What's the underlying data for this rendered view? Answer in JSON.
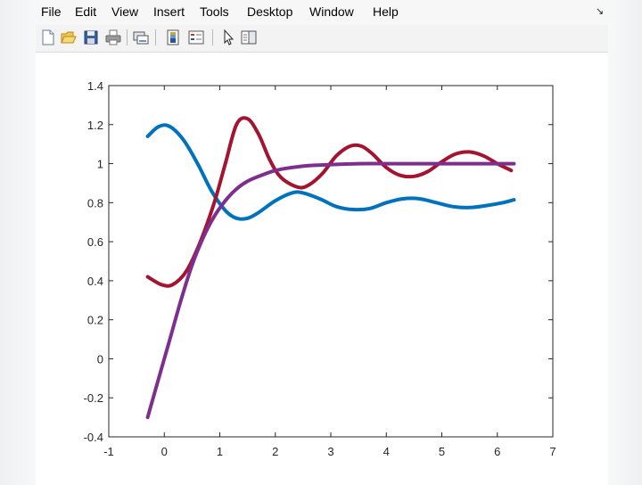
{
  "menu": {
    "items": [
      "File",
      "Edit",
      "View",
      "Insert",
      "Tools",
      "Desktop",
      "Window",
      "Help"
    ]
  },
  "toolbar": {
    "icons": [
      "new-figure-icon",
      "open-file-icon",
      "save-icon",
      "print-icon",
      "link-plot-icon",
      "insert-colorbar-icon",
      "insert-legend-icon",
      "pointer-icon",
      "property-editor-icon"
    ]
  },
  "colors": {
    "blue_series": "#0072BD",
    "red_series": "#A2142F",
    "purple_series": "#7E2F8E"
  },
  "chart_data": {
    "type": "line",
    "xlim": [
      -1,
      7
    ],
    "ylim": [
      -0.4,
      1.4
    ],
    "xticks": [
      "-1",
      "0",
      "1",
      "2",
      "3",
      "4",
      "5",
      "6",
      "7"
    ],
    "yticks": [
      "-0.4",
      "-0.2",
      "0",
      "0.2",
      "0.4",
      "0.6",
      "0.8",
      "1",
      "1.2",
      "1.4"
    ],
    "grid": false,
    "series": [
      {
        "color": "#0072BD",
        "x": [
          -0.3,
          -0.1,
          0.1,
          0.35,
          0.6,
          0.85,
          1.1,
          1.3,
          1.5,
          1.7,
          2.0,
          2.3,
          2.5,
          2.8,
          3.1,
          3.4,
          3.7,
          4.0,
          4.3,
          4.6,
          4.9,
          5.2,
          5.5,
          5.8,
          6.1,
          6.3
        ],
        "y": [
          1.14,
          1.19,
          1.19,
          1.12,
          1.0,
          0.86,
          0.76,
          0.72,
          0.72,
          0.75,
          0.81,
          0.85,
          0.85,
          0.82,
          0.78,
          0.765,
          0.77,
          0.8,
          0.82,
          0.82,
          0.8,
          0.78,
          0.775,
          0.785,
          0.8,
          0.815
        ]
      },
      {
        "color": "#A2142F",
        "x": [
          -0.3,
          -0.05,
          0.15,
          0.4,
          0.65,
          0.9,
          1.1,
          1.3,
          1.5,
          1.7,
          1.9,
          2.1,
          2.4,
          2.6,
          2.85,
          3.1,
          3.35,
          3.55,
          3.75,
          4.0,
          4.25,
          4.5,
          4.75,
          5.0,
          5.25,
          5.5,
          5.75,
          6.0,
          6.25
        ],
        "y": [
          0.42,
          0.38,
          0.38,
          0.45,
          0.6,
          0.8,
          1.0,
          1.2,
          1.23,
          1.15,
          1.02,
          0.93,
          0.88,
          0.89,
          0.95,
          1.04,
          1.09,
          1.09,
          1.05,
          0.98,
          0.94,
          0.935,
          0.96,
          1.01,
          1.05,
          1.06,
          1.04,
          1.0,
          0.965
        ]
      },
      {
        "color": "#7E2F8E",
        "x": [
          -0.3,
          -0.1,
          0.1,
          0.3,
          0.5,
          0.7,
          0.9,
          1.1,
          1.3,
          1.5,
          1.7,
          2.0,
          2.3,
          2.6,
          3.0,
          3.5,
          4.0,
          4.5,
          5.0,
          5.5,
          6.0,
          6.3
        ],
        "y": [
          -0.3,
          -0.1,
          0.1,
          0.3,
          0.48,
          0.62,
          0.73,
          0.81,
          0.87,
          0.91,
          0.935,
          0.965,
          0.98,
          0.99,
          0.995,
          1.0,
          1.0,
          1.0,
          1.0,
          1.0,
          1.0,
          1.0
        ]
      }
    ]
  }
}
